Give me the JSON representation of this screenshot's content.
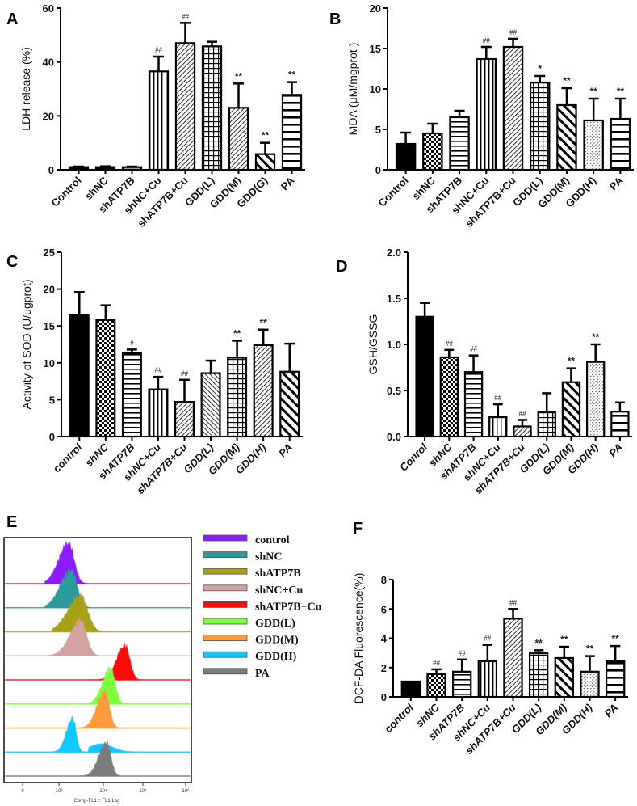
{
  "chart_data": [
    {
      "panel": "A",
      "type": "bar",
      "ylabel": "LDH release (%)",
      "ylim": [
        0,
        60
      ],
      "yticks": [
        0,
        20,
        40,
        60
      ],
      "categories": [
        "Control",
        "shNC",
        "shATP7B",
        "shNC+Cu",
        "shATP7B+Cu",
        "GDD(L)",
        "GDD(M)",
        "GDD(G)",
        "PA"
      ],
      "values": [
        1,
        1,
        1,
        36.5,
        47,
        45.8,
        23,
        5.8,
        27.8
      ],
      "error_upper": [
        1.2,
        1.3,
        1.2,
        42,
        54.5,
        47.5,
        32,
        10,
        32.5
      ],
      "annotations": [
        "",
        "",
        "",
        "##",
        "##",
        "",
        "**",
        "**",
        "**"
      ]
    },
    {
      "panel": "B",
      "type": "bar",
      "ylabel": "MDA (μM/mgprot )",
      "ylim": [
        0,
        20
      ],
      "yticks": [
        0,
        5,
        10,
        15,
        20
      ],
      "categories": [
        "Control",
        "shNC",
        "shATP7B",
        "shNC+Cu",
        "shATP7B+Cu",
        "GDD(L)",
        "GDD(M)",
        "GDD(H)",
        "PA"
      ],
      "values": [
        3.2,
        4.5,
        6.5,
        13.7,
        15.2,
        10.8,
        8,
        6.1,
        6.3
      ],
      "error_upper": [
        4.6,
        5.7,
        7.3,
        15.2,
        16.2,
        11.6,
        10.1,
        8.8,
        8.8
      ],
      "annotations": [
        "",
        "",
        "",
        "##",
        "##",
        "*",
        "**",
        "**",
        "**"
      ]
    },
    {
      "panel": "C",
      "type": "bar",
      "ylabel": "Activity of SOD (U/ugprot)",
      "ylim": [
        0,
        25
      ],
      "yticks": [
        0,
        5,
        10,
        15,
        20,
        25
      ],
      "categories": [
        "control",
        "shNC",
        "shATP7B",
        "shNC+Cu",
        "shATP7B+Cu",
        "GDD(L)",
        "GDD(M)",
        "GDD(H)",
        "PA"
      ],
      "values": [
        16.5,
        15.8,
        11.3,
        6.4,
        4.7,
        8.6,
        10.7,
        12.4,
        8.8
      ],
      "error_upper": [
        19.6,
        17.8,
        11.8,
        8.1,
        7.7,
        10.3,
        13,
        14.5,
        12.6
      ],
      "annotations": [
        "",
        "",
        "#",
        "##",
        "##",
        "",
        "**",
        "**",
        ""
      ]
    },
    {
      "panel": "D",
      "type": "bar",
      "ylabel": "GSH/GSSG",
      "ylim": [
        0,
        2.0
      ],
      "yticks": [
        0,
        0.5,
        1.0,
        1.5,
        2.0
      ],
      "categories": [
        "Conrol",
        "shNC",
        "shATP7B",
        "shNC+Cu",
        "shATP7B+Cu",
        "GDD(L)",
        "GDD(M)",
        "GDD(H)",
        "PA"
      ],
      "values": [
        1.3,
        0.86,
        0.7,
        0.21,
        0.11,
        0.27,
        0.59,
        0.81,
        0.27
      ],
      "error_upper": [
        1.45,
        0.94,
        0.88,
        0.35,
        0.18,
        0.47,
        0.74,
        1.0,
        0.37
      ],
      "annotations": [
        "",
        "##",
        "##",
        "##",
        "##",
        "",
        "**",
        "**",
        ""
      ]
    },
    {
      "panel": "E",
      "type": "histogram",
      "xlabel": "Comp-FL1 :: FL1 Log",
      "xticks": [
        "0",
        "10³",
        "10⁴",
        "10⁵",
        "10⁶"
      ],
      "series": [
        {
          "name": "control",
          "color": "#8b1cff"
        },
        {
          "name": "shNC",
          "color": "#2a9a9a"
        },
        {
          "name": "shATP7B",
          "color": "#a8a018"
        },
        {
          "name": "shNC+Cu",
          "color": "#d4a2a0"
        },
        {
          "name": "shATP7B+Cu",
          "color": "#ff0a0a"
        },
        {
          "name": "GDD(L)",
          "color": "#7cff3c"
        },
        {
          "name": "GDD(M)",
          "color": "#ff9a3c"
        },
        {
          "name": "GDD(H)",
          "color": "#10c8ff"
        },
        {
          "name": "PA",
          "color": "#7c7c7c"
        }
      ]
    },
    {
      "panel": "F",
      "type": "bar",
      "ylabel": "DCF-DA Fluorescence(%)",
      "ylim": [
        0,
        8
      ],
      "yticks": [
        0,
        2,
        4,
        6,
        8
      ],
      "categories": [
        "control",
        "shNC",
        "shATP7B",
        "shNC+Cu",
        "shATP7B+Cu",
        "GDD(L)",
        "GDD(M)",
        "GDD(H)",
        "PA"
      ],
      "values": [
        1.05,
        1.55,
        1.72,
        2.43,
        5.33,
        2.97,
        2.65,
        1.72,
        2.43
      ],
      "error_upper": [
        1.05,
        1.88,
        2.55,
        3.55,
        6.0,
        3.18,
        3.42,
        2.78,
        3.47
      ],
      "annotations": [
        "",
        "##",
        "##",
        "##",
        "##",
        "**",
        "**",
        "**",
        "**"
      ]
    }
  ]
}
